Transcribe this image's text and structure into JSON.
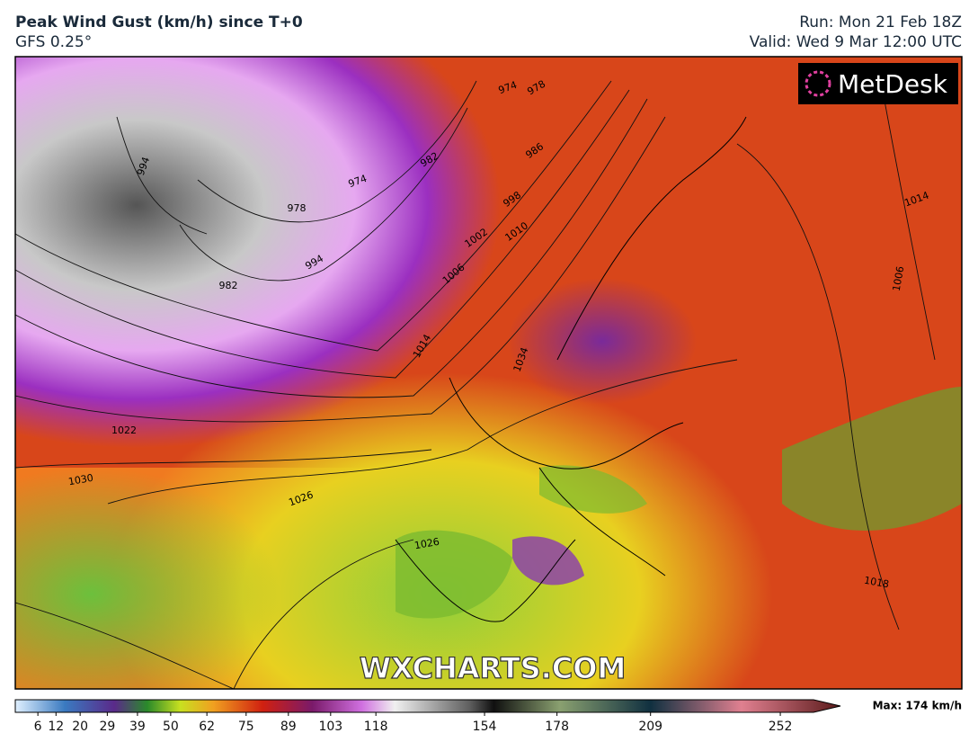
{
  "header": {
    "title": "Peak Wind Gust (km/h) since T+0",
    "subtitle": "GFS 0.25°",
    "run": "Run: Mon 21 Feb 18Z",
    "valid": "Valid: Wed 9 Mar 12:00 UTC"
  },
  "logo": "MetDesk",
  "watermark": "WXCHARTS.COM",
  "isobar_labels": [
    994,
    978,
    982,
    974,
    982,
    986,
    998,
    1010,
    1002,
    1006,
    994,
    1014,
    1022,
    1030,
    1026,
    974,
    978,
    1018,
    1014,
    1006,
    1034,
    1026
  ],
  "colorbar": {
    "lim": [
      0,
      263
    ],
    "ticks": [
      6,
      12,
      20,
      29,
      39,
      50,
      62,
      75,
      89,
      103,
      118,
      154,
      178,
      209,
      252
    ],
    "max_label": "Max: 174 km/h"
  }
}
